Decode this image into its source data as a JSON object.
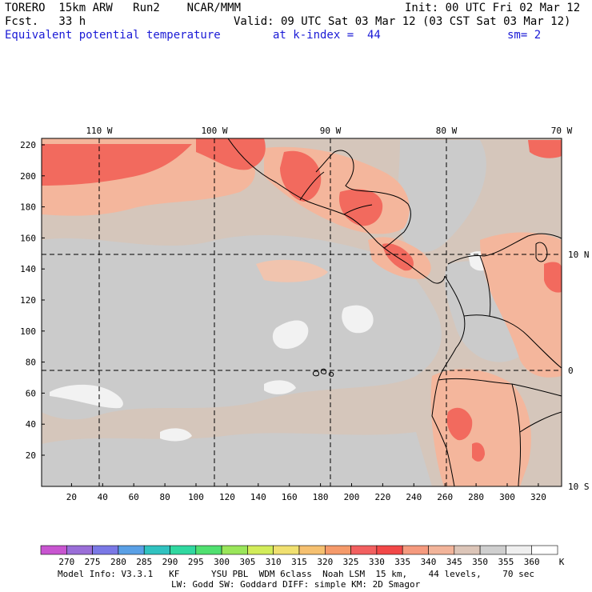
{
  "header": {
    "model": "TORERO  15km ARW   Run2    NCAR/MMM",
    "init": "Init: 00 UTC Fri 02 Mar 12",
    "fcst": "Fcst.   33 h",
    "valid": "Valid: 09 UTC Sat 03 Mar 12 (03 CST Sat 03 Mar 12)",
    "field": "Equivalent potential temperature",
    "level": "at k-index =  44",
    "smooth": "sm= 2"
  },
  "map": {
    "lon_labels": [
      "110 W",
      "100 W",
      "90 W",
      "80 W",
      "70 W"
    ],
    "lat_labels": [
      "10 N",
      "0",
      "10 S"
    ],
    "y_ticks": [
      "220",
      "200",
      "180",
      "160",
      "140",
      "120",
      "100",
      "80",
      "60",
      "40",
      "20"
    ],
    "x_ticks": [
      "20",
      "40",
      "60",
      "80",
      "100",
      "120",
      "140",
      "160",
      "180",
      "200",
      "220",
      "240",
      "260",
      "280",
      "300",
      "320"
    ]
  },
  "colorbar": {
    "labels": [
      "270",
      "275",
      "280",
      "285",
      "290",
      "295",
      "300",
      "305",
      "310",
      "315",
      "320",
      "325",
      "330",
      "335",
      "340",
      "345",
      "350",
      "355",
      "360"
    ],
    "unit": "K",
    "colors": [
      "#c855d0",
      "#9a6ed8",
      "#7a78e6",
      "#5aa0e6",
      "#30c2c0",
      "#30d8a0",
      "#50e070",
      "#9ae65a",
      "#d2ec5a",
      "#f0e070",
      "#f5c070",
      "#f59a6a",
      "#f26060",
      "#f24848",
      "#f59a7e",
      "#f2b49a",
      "#dcc5b8",
      "#cfcfcf",
      "#efefef",
      "#ffffff"
    ]
  },
  "footer": {
    "line1": "Model Info: V3.3.1   KF      YSU PBL  WDM 6class  Noah LSM  15 km,    44 levels,    70 sec",
    "line2": "LW: Godd SW: Goddard DIFF: simple KM: 2D Smagor"
  }
}
